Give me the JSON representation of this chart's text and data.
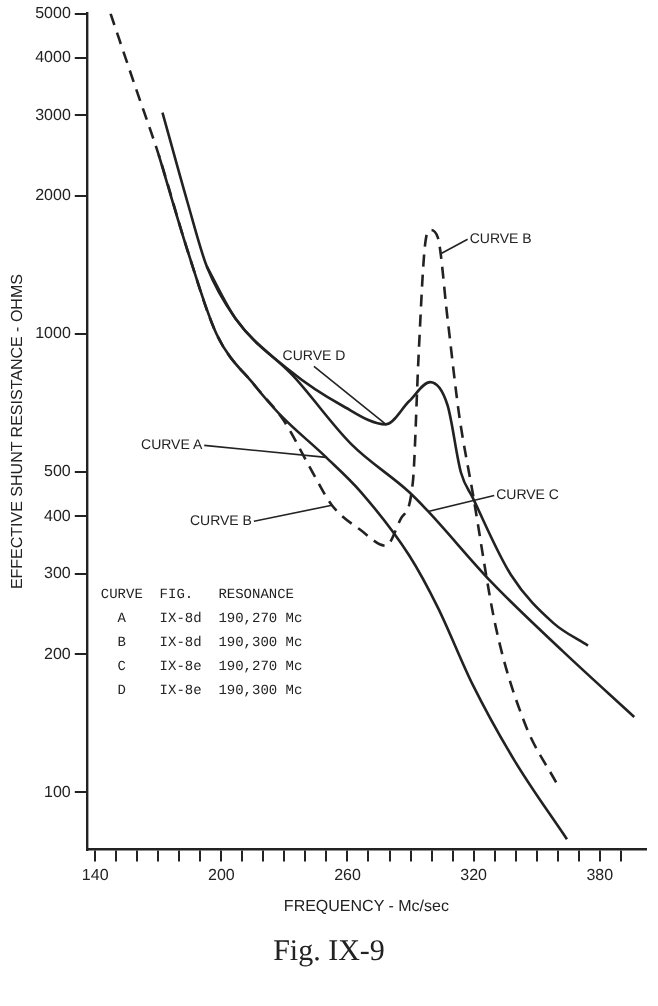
{
  "chart_data": {
    "type": "line",
    "title": "Fig. IX-9",
    "xlabel": "FREQUENCY - Mc/sec",
    "ylabel": "EFFECTIVE SHUNT RESISTANCE - OHMS",
    "log": "y",
    "grid": false,
    "legend": false,
    "marker": "none",
    "xlim": [
      136,
      402
    ],
    "ylim": [
      75,
      5000
    ],
    "xticks": [
      140,
      {
        "value": 150,
        "label": null
      },
      {
        "value": 160,
        "label": null
      },
      {
        "value": 170,
        "label": null
      },
      {
        "value": 180,
        "label": null
      },
      {
        "value": 190,
        "label": null
      },
      200,
      {
        "value": 210,
        "label": null
      },
      {
        "value": 220,
        "label": null
      },
      {
        "value": 230,
        "label": null
      },
      {
        "value": 240,
        "label": null
      },
      {
        "value": 250,
        "label": null
      },
      260,
      {
        "value": 270,
        "label": null
      },
      {
        "value": 280,
        "label": null
      },
      {
        "value": 290,
        "label": null
      },
      {
        "value": 300,
        "label": null
      },
      {
        "value": 310,
        "label": null
      },
      320,
      {
        "value": 330,
        "label": null
      },
      {
        "value": 340,
        "label": null
      },
      {
        "value": 350,
        "label": null
      },
      {
        "value": 360,
        "label": null
      },
      {
        "value": 370,
        "label": null
      },
      380,
      {
        "value": 390,
        "label": null
      }
    ],
    "yticks": [
      100,
      200,
      300,
      400,
      500,
      1000,
      2000,
      3000,
      4000,
      5000
    ],
    "series": [
      {
        "color": "#222222",
        "line_style": "solid",
        "x": [
          170.2,
          184,
          197.7,
          216,
          227.9,
          249.9,
          266.4,
          289.3,
          303,
          319.5,
          339.6,
          364.4
        ],
        "values": [
          2460,
          1517,
          1000,
          771,
          667,
          538,
          452,
          329,
          253,
          172,
          117,
          79
        ]
      },
      {
        "color": "#222222",
        "line_style": "dashed",
        "x": [
          147.3,
          159.2,
          170.2,
          184,
          197.7,
          216,
          229.7,
          243.5,
          252.6,
          266.4,
          278.3,
          285.6,
          291.1,
          293.8,
          296.6,
          299.3,
          303,
          307.6,
          313.1,
          319.5,
          330.5,
          344.2,
          359.8
        ],
        "values": [
          5000,
          3450,
          2460,
          1517,
          1000,
          771,
          647,
          498,
          423,
          373,
          345,
          397,
          475,
          891,
          1517,
          1686,
          1622,
          1080,
          667,
          452,
          230,
          142,
          104
        ]
      },
      {
        "color": "#222222",
        "line_style": "solid",
        "x": [
          193.1,
          206.8,
          234.3,
          261.8,
          289.3,
          298.4,
          328.6,
          362.5,
          396.4
        ],
        "values": [
          1403,
          1080,
          809,
          575,
          452,
          410,
          287,
          203,
          146
        ]
      },
      {
        "color": "#222222",
        "line_style": "solid",
        "x": [
          172,
          184,
          193.1,
          206.8,
          232.5,
          257.2,
          278.3,
          289.3,
          299.3,
          307.6,
          314,
          319.5,
          337.8,
          358,
          374.4
        ],
        "values": [
          3041,
          1931,
          1403,
          1080,
          832,
          699,
          635,
          713,
          785,
          699,
          498,
          440,
          298,
          234,
          209
        ]
      }
    ],
    "annotations": [
      {
        "text": "CURVE B",
        "x": 304.8,
        "y": 1500
      },
      {
        "text": "CURVE D",
        "x": 278.3,
        "y": 635
      },
      {
        "text": "CURVE A",
        "x": 249.9,
        "y": 538
      },
      {
        "text": "CURVE C",
        "x": 298.4,
        "y": 410
      },
      {
        "text": "CURVE B",
        "x": 252.6,
        "y": 423
      },
      "CURVE  FIG.   RESONANCE",
      "  A    IX-8d  190,270 Mc",
      "  B    IX-8d  190,300 Mc",
      "  C    IX-8e  190,270 Mc",
      "  D    IX-8e  190,300 Mc"
    ]
  }
}
